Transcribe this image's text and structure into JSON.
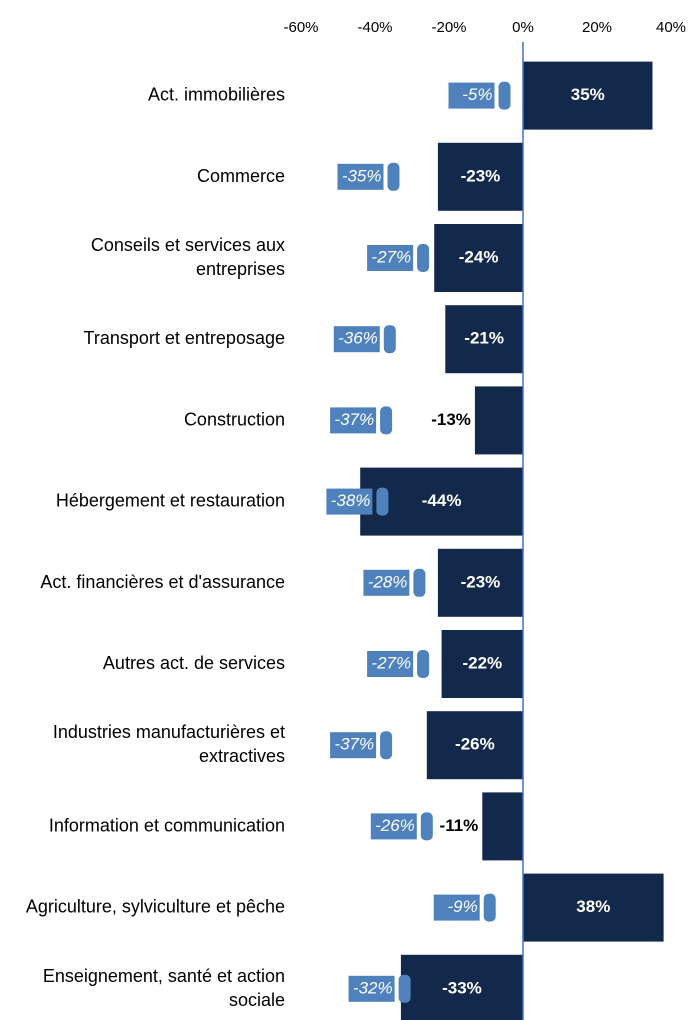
{
  "chart_data": {
    "type": "bar",
    "orientation": "horizontal",
    "categories": [
      [
        "Act. immobilières"
      ],
      [
        "Commerce"
      ],
      [
        "Conseils et services aux",
        "entreprises"
      ],
      [
        "Transport et entreposage"
      ],
      [
        "Construction"
      ],
      [
        "Hébergement et restauration"
      ],
      [
        "Act. financières et d'assurance"
      ],
      [
        "Autres act. de services"
      ],
      [
        "Industries manufacturières et",
        "extractives"
      ],
      [
        "Information et communication"
      ],
      [
        "Agriculture, sylviculture et pêche"
      ],
      [
        "Enseignement, santé et action",
        "sociale"
      ]
    ],
    "series": [
      {
        "color": "#13294b",
        "values": [
          35,
          -23,
          -24,
          -21,
          -13,
          -44,
          -23,
          -22,
          -26,
          -11,
          38,
          -33
        ],
        "value_labels": [
          "35%",
          "-23%",
          "-24%",
          "-21%",
          "-13%",
          "-44%",
          "-23%",
          "-22%",
          "-26%",
          "-11%",
          "38%",
          "-33%"
        ]
      },
      {
        "color": "#4f81bd",
        "values": [
          -5,
          -35,
          -27,
          -36,
          -37,
          -38,
          -28,
          -27,
          -37,
          -26,
          -9,
          -32
        ],
        "value_labels": [
          "-5%",
          "-35%",
          "-27%",
          "-36%",
          "-37%",
          "-38%",
          "-28%",
          "-27%",
          "-37%",
          "-26%",
          "-9%",
          "-32%"
        ]
      }
    ],
    "xlim": [
      -60,
      40
    ],
    "xticks": [
      {
        "value": -60,
        "label": "-60%"
      },
      {
        "value": -40,
        "label": "-40%"
      },
      {
        "value": -20,
        "label": "-20%"
      },
      {
        "value": 0,
        "label": "0%"
      },
      {
        "value": 20,
        "label": "20%"
      },
      {
        "value": 40,
        "label": "40%"
      }
    ]
  }
}
